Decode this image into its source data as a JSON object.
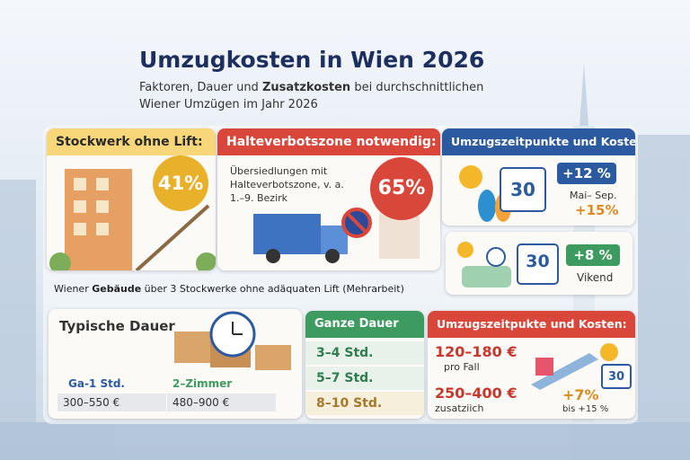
{
  "header": {
    "title": "Umzugkosten in Wien 2026",
    "subtitle": {
      "line1": [
        "Faktoren, Dauer und ",
        "Zusatzkosten",
        " bei durchschnittlichen"
      ],
      "line2": "Wiener Umzügen im Jahr 2026"
    }
  },
  "cards": {
    "stairs": {
      "heading": "Stockwerk ohne Lift:",
      "badge": "41%"
    },
    "parking": {
      "heading": "Halteverbotszone notwendig:",
      "text": "Übersiedlungen mit Halteverbotszone, v. a. 1.–9. Bezirk",
      "badge": "65%"
    },
    "timing": {
      "heading": "Umzugszeitpunkte und Kosten",
      "calendar": "30",
      "badge": "+12 %",
      "period": "Mai– Sep.",
      "extra": "+15%",
      "sub": {
        "calendar": "30",
        "badge": "+8 %",
        "label": "Vikend"
      }
    },
    "note": [
      "Wiener ",
      "Gebäude",
      " über 3 Stockwerke ohne adäquaten Lift (Mehrarbeit)"
    ],
    "duration": {
      "heading": "Typische Dauer",
      "items": [
        {
          "label": "Ga-1 Std.",
          "price": "300–550 €"
        },
        {
          "label": "2–Zimmer",
          "price": "480–900 €"
        }
      ]
    },
    "total": {
      "heading": "Ganze Dauer",
      "rows": [
        "3–4 Std.",
        "5–7 Std.",
        "8–10 Std."
      ]
    },
    "costs": {
      "heading": "Umzugszeitpukte und Kosten:",
      "rows": [
        {
          "price": "120–180 €",
          "label": "pro Fall"
        },
        {
          "price": "250–400 €",
          "label": "zusatziich"
        }
      ],
      "badge": "+7%",
      "badge_note": "bis +15 %",
      "calendar": "30"
    }
  }
}
